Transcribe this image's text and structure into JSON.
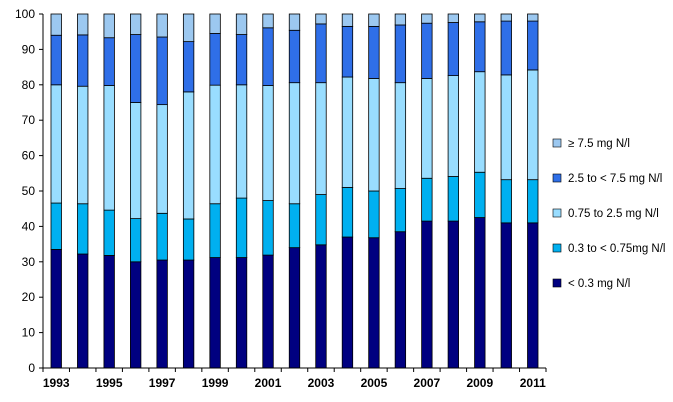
{
  "chart_data": {
    "type": "bar",
    "stacked": true,
    "title": "",
    "xlabel": "",
    "ylabel": "",
    "ylim": [
      0,
      100
    ],
    "yticks": [
      0,
      10,
      20,
      30,
      40,
      50,
      60,
      70,
      80,
      90,
      100
    ],
    "grid": false,
    "legend_position": "right",
    "categories": [
      "1993",
      "1994",
      "1995",
      "1996",
      "1997",
      "1998",
      "1999",
      "2000",
      "2001",
      "2002",
      "2003",
      "2004",
      "2005",
      "2006",
      "2007",
      "2008",
      "2009",
      "2010",
      "2011"
    ],
    "xtick_labels": [
      "1993",
      "1995",
      "1997",
      "1999",
      "2001",
      "2003",
      "2005",
      "2007",
      "2009",
      "2011"
    ],
    "series": [
      {
        "name": "< 0.3 mg N/l",
        "color": "#000080",
        "values": [
          33.5,
          32.2,
          31.8,
          30.0,
          30.5,
          30.5,
          31.2,
          31.2,
          31.9,
          34.0,
          34.8,
          37.0,
          36.8,
          38.5,
          41.5,
          41.5,
          42.5,
          41.0,
          41.0
        ]
      },
      {
        "name": "0.3 to < 0.75mg N/l",
        "color": "#00B0F0",
        "values": [
          13.1,
          14.2,
          12.8,
          12.2,
          13.2,
          11.6,
          15.2,
          16.8,
          15.4,
          12.4,
          14.2,
          14.0,
          13.2,
          12.2,
          12.1,
          12.6,
          12.8,
          12.2,
          12.2
        ]
      },
      {
        "name": "0.75 to 2.5 mg N/l",
        "color": "#99DDFF",
        "values": [
          33.4,
          33.2,
          35.2,
          32.8,
          30.7,
          35.9,
          33.5,
          32.0,
          32.5,
          34.2,
          31.6,
          31.2,
          31.8,
          29.9,
          28.2,
          28.5,
          28.4,
          29.6,
          31.0
        ]
      },
      {
        "name": "2.5 to < 7.5 mg N/l",
        "color": "#2F6FE8",
        "values": [
          14.0,
          14.5,
          13.5,
          19.2,
          19.1,
          14.2,
          14.6,
          14.2,
          16.3,
          14.8,
          16.6,
          14.3,
          14.7,
          16.3,
          15.6,
          15.0,
          14.1,
          15.2,
          13.8
        ]
      },
      {
        "name": "≥ 7.5 mg N/l",
        "color": "#9CC8F0",
        "values": [
          6.0,
          5.9,
          6.7,
          5.8,
          6.5,
          7.8,
          5.5,
          5.8,
          3.9,
          4.6,
          2.8,
          3.5,
          3.5,
          3.1,
          2.6,
          2.4,
          2.2,
          2.0,
          2.0
        ]
      }
    ],
    "legend_order": [
      "≥ 7.5 mg N/l",
      "2.5 to < 7.5 mg N/l",
      "0.75 to 2.5 mg N/l",
      "0.3 to < 0.75mg N/l",
      "< 0.3 mg N/l"
    ]
  }
}
